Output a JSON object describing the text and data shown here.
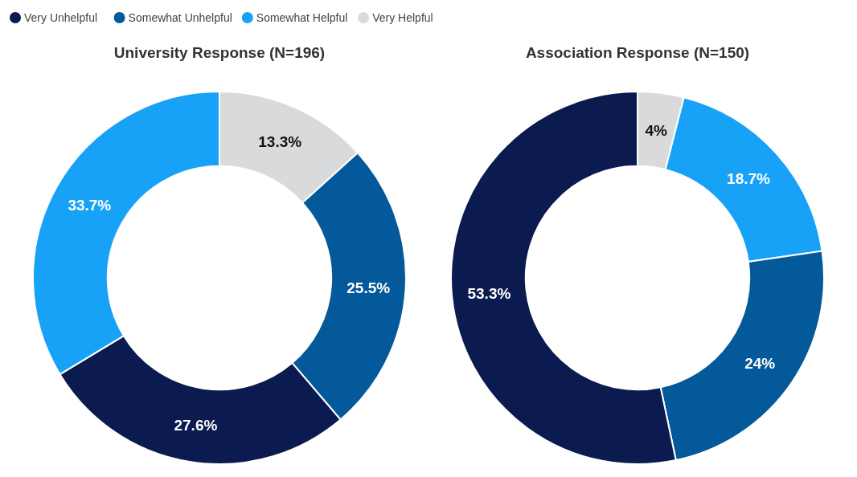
{
  "chart_data": [
    {
      "type": "donut",
      "title": "University Response (N=196)",
      "categories": [
        null,
        null,
        null,
        null
      ],
      "values": [
        13.3,
        25.5,
        27.6,
        33.7
      ],
      "value_labels": [
        "13.3%",
        "25.5%",
        "27.6%",
        "33.7%"
      ],
      "colors": [
        "#d9dadc",
        "#04599a",
        "#0b1a4f",
        "#17a2f7"
      ]
    },
    {
      "type": "donut",
      "title": "Association Response (N=150)",
      "categories": [
        "Very Helpful",
        "Somewhat Helpful",
        "Somewhat Unhelpful",
        "Very Unhelpful"
      ],
      "values": [
        4,
        18.7,
        24,
        53.3
      ],
      "value_labels": [
        "4%",
        "18.7%",
        "24%",
        "53.3%"
      ],
      "colors": [
        "#d9dadc",
        "#17a2f7",
        "#04599a",
        "#0b1a4f"
      ],
      "legend": "top left"
    }
  ]
}
